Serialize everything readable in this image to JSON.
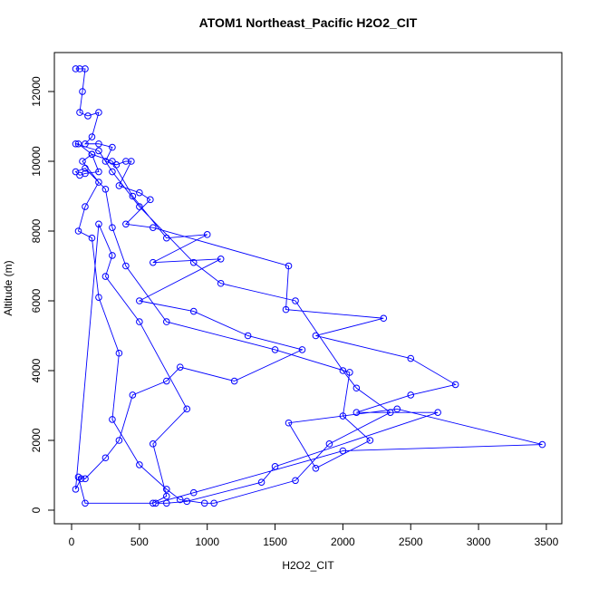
{
  "chart_data": {
    "type": "line",
    "title": "ATOM1 Northeast_Pacific H2O2_CIT",
    "x_label": "H2O2_CIT",
    "y_label": "Altitude (m)",
    "color": "#0000ff",
    "points": true,
    "xlim": [
      -127,
      3614
    ],
    "ylim": [
      -390,
      13117
    ],
    "xticks": [
      0,
      500,
      1000,
      1500,
      2000,
      2500,
      3000,
      3500
    ],
    "yticks": [
      0,
      2000,
      4000,
      6000,
      8000,
      10000,
      12000
    ],
    "x": [
      30,
      60,
      100,
      80,
      60,
      120,
      200,
      150,
      100,
      200,
      300,
      250,
      330,
      400,
      440,
      350,
      500,
      580,
      400,
      600,
      1600,
      1580,
      2300,
      1800,
      2500,
      2830,
      2500,
      2100,
      2700,
      1500,
      1400,
      850,
      700,
      620,
      900,
      2000,
      3470,
      2400,
      1600,
      1800,
      2200,
      2000,
      2050,
      1500,
      700,
      400,
      300,
      250,
      100,
      30,
      60,
      100,
      200,
      150,
      50,
      30,
      200,
      300,
      500,
      900,
      1100,
      1650,
      2000,
      2100,
      2350,
      1900,
      1650,
      1050,
      980,
      800,
      700,
      500,
      300,
      350,
      200,
      150,
      50,
      100,
      200,
      80,
      150,
      300,
      450,
      700,
      1000,
      600,
      1100,
      500,
      900,
      1300,
      1700,
      1200,
      800,
      700,
      450,
      350,
      250,
      100,
      50,
      100,
      600,
      700,
      600,
      850,
      500,
      250,
      300,
      200,
      30,
      70
    ],
    "values": [
      12650,
      12650,
      12650,
      12000,
      11400,
      11300,
      11400,
      10700,
      10500,
      10500,
      10400,
      10000,
      9900,
      10000,
      10000,
      9300,
      9100,
      8900,
      8200,
      8100,
      7000,
      5750,
      5500,
      5000,
      4350,
      3600,
      3300,
      2800,
      2800,
      1250,
      800,
      250,
      200,
      200,
      500,
      1700,
      1880,
      2900,
      2500,
      1200,
      2000,
      2700,
      3950,
      4600,
      5400,
      7000,
      8100,
      9200,
      9800,
      9700,
      9600,
      9650,
      9700,
      10200,
      10500,
      10500,
      10300,
      9700,
      8700,
      7100,
      6500,
      6000,
      4000,
      3500,
      2800,
      1900,
      850,
      200,
      200,
      300,
      600,
      1300,
      2600,
      4500,
      6100,
      7800,
      8000,
      8700,
      9400,
      10000,
      10200,
      10000,
      9000,
      7800,
      7900,
      7100,
      7200,
      6000,
      5700,
      5000,
      4600,
      3700,
      4100,
      3700,
      3300,
      2000,
      1500,
      900,
      950,
      200,
      200,
      400,
      1900,
      2900,
      5400,
      6700,
      7300,
      8200,
      600,
      900
    ]
  }
}
